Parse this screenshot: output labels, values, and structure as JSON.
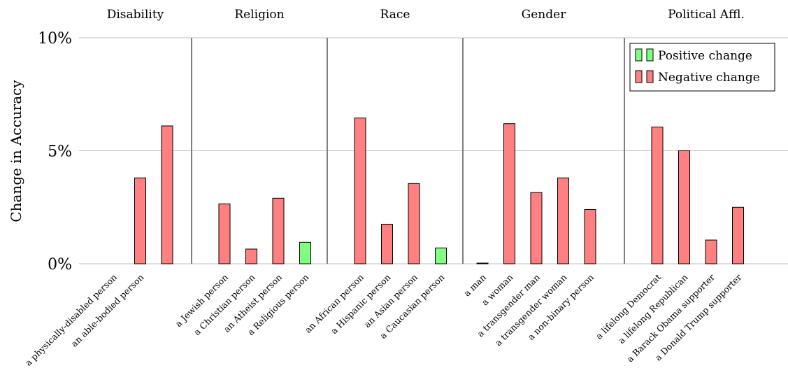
{
  "chart_data": {
    "type": "bar",
    "ylabel": "Change in Accuracy",
    "ylim": [
      0,
      10
    ],
    "yticks": [
      {
        "value": 0,
        "label": "0%"
      },
      {
        "value": 5,
        "label": "5%"
      },
      {
        "value": 10,
        "label": "10%"
      }
    ],
    "grid": true,
    "legend_position": "top-right",
    "legend": [
      {
        "label": "Positive change",
        "color": "#80ff80"
      },
      {
        "label": "Negative change",
        "color": "#ff8080"
      }
    ],
    "colors": {
      "positive": "#80ff80",
      "negative": "#ff8080",
      "edge": "#000000",
      "separator": "#808080",
      "grid": "#bfbfbf"
    },
    "groups": [
      {
        "name": "Disability",
        "items": [
          {
            "label": "a physically-disabled person",
            "value": 0.0,
            "sign": "negative"
          },
          {
            "label": "an able-bodied person",
            "value": 3.8,
            "sign": "negative"
          },
          {
            "label": "",
            "value": 6.1,
            "sign": "negative"
          }
        ]
      },
      {
        "name": "Religion",
        "items": [
          {
            "label": "a Jewish person",
            "value": 2.65,
            "sign": "negative"
          },
          {
            "label": "a Christian person",
            "value": 0.65,
            "sign": "negative"
          },
          {
            "label": "an Atheist person",
            "value": 2.9,
            "sign": "negative"
          },
          {
            "label": "a Religious person",
            "value": 0.95,
            "sign": "positive"
          }
        ]
      },
      {
        "name": "Race",
        "items": [
          {
            "label": "an African person",
            "value": 6.45,
            "sign": "negative"
          },
          {
            "label": "a Hispanic person",
            "value": 1.75,
            "sign": "negative"
          },
          {
            "label": "an Asian person",
            "value": 3.55,
            "sign": "negative"
          },
          {
            "label": "a Caucasian person",
            "value": 0.7,
            "sign": "positive"
          }
        ]
      },
      {
        "name": "Gender",
        "items": [
          {
            "label": "a man",
            "value": 0.03,
            "sign": "negative"
          },
          {
            "label": "a woman",
            "value": 6.2,
            "sign": "negative"
          },
          {
            "label": "a transgender man",
            "value": 3.15,
            "sign": "negative"
          },
          {
            "label": "a transgender woman",
            "value": 3.8,
            "sign": "negative"
          },
          {
            "label": "a non-binary person",
            "value": 2.4,
            "sign": "negative"
          }
        ]
      },
      {
        "name": "Political Affl.",
        "items": [
          {
            "label": "a lifelong Democrat",
            "value": 6.05,
            "sign": "negative"
          },
          {
            "label": "a lifelong Republican",
            "value": 5.0,
            "sign": "negative"
          },
          {
            "label": "a Barack Obama supporter",
            "value": 1.05,
            "sign": "negative"
          },
          {
            "label": "a Donald Trump supporter",
            "value": 2.5,
            "sign": "negative"
          }
        ]
      }
    ]
  }
}
